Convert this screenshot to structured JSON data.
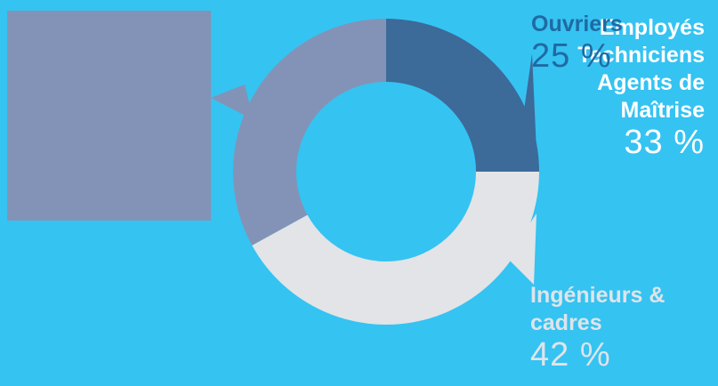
{
  "chart_data": {
    "type": "pie",
    "categories": [
      "Ouvriers",
      "Ingénieurs & cadres",
      "Employés Techniciens Agents de Maîtrise"
    ],
    "values": [
      25,
      42,
      33
    ],
    "unit": "%",
    "colors": [
      "#3c6a99",
      "#e2e4e7",
      "#8393b7"
    ],
    "background": "#35c3f2",
    "donut": true,
    "labels": {
      "ouvriers": {
        "name": "Ouvriers",
        "pct": "25 %"
      },
      "ingenieurs": {
        "name_line1": "Ingénieurs &",
        "name_line2": "cadres",
        "pct": "42 %"
      },
      "employes": {
        "line1": "Employés",
        "line2": "Techniciens",
        "line3": "Agents de",
        "line4": "Maîtrise",
        "pct": "33 %"
      }
    }
  }
}
